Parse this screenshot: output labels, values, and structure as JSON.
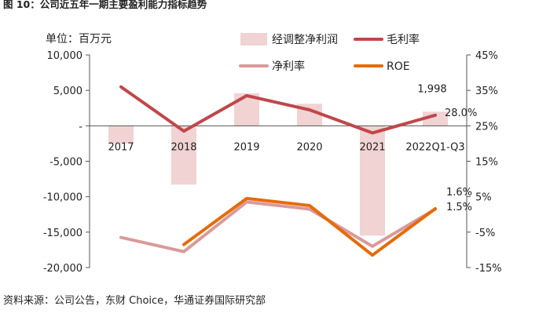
{
  "figure_title": "图 10：公司近五年一期主要盈利能力指标趋势",
  "unit_label": "单位：百万元",
  "source_note": "资料来源：公司公告，东财 Choice，华通证券国际研究部",
  "colors": {
    "adj_net_profit_bar": "#f1d3d3",
    "gross_margin": "#c0474a",
    "net_margin": "#d99a9b",
    "roe": "#e46c0a",
    "axis": "#555555"
  },
  "chart_data": {
    "type": "bar+line",
    "categories": [
      "2017",
      "2018",
      "2019",
      "2020",
      "2021",
      "2022Q1-Q3"
    ],
    "y_left": {
      "min": -20000,
      "max": 10000,
      "step": 5000,
      "tick_labels": [
        "-20,000",
        "-15,000",
        "-10,000",
        "-5,000",
        "-",
        "5,000",
        "10,000"
      ]
    },
    "y_right": {
      "min": -15,
      "max": 45,
      "step": 10,
      "tick_labels": [
        "-15%",
        "-5%",
        "5%",
        "15%",
        "25%",
        "35%",
        "45%"
      ]
    },
    "legend": [
      "经调整净利润",
      "毛利率",
      "净利率",
      "ROE"
    ],
    "series": [
      {
        "name": "经调整净利润",
        "kind": "bar",
        "axis": "left",
        "values": [
          -2500,
          -8300,
          4600,
          3100,
          -15500,
          1998
        ]
      },
      {
        "name": "毛利率",
        "kind": "line",
        "axis": "right",
        "values": [
          36.0,
          23.5,
          33.5,
          29.5,
          23.0,
          28.0
        ]
      },
      {
        "name": "净利率",
        "kind": "line",
        "axis": "right",
        "values": [
          -6.5,
          -10.5,
          3.5,
          1.5,
          -9.0,
          1.5
        ]
      },
      {
        "name": "ROE",
        "kind": "line",
        "axis": "right",
        "values": [
          null,
          -8.5,
          4.5,
          2.5,
          -11.5,
          1.6
        ]
      }
    ],
    "data_labels": {
      "bar_last": "1,998",
      "gross_margin_last": "28.0%",
      "roe_last": "1.6%",
      "net_margin_last": "1.5%"
    },
    "legend_placement": "top",
    "grid": false
  }
}
